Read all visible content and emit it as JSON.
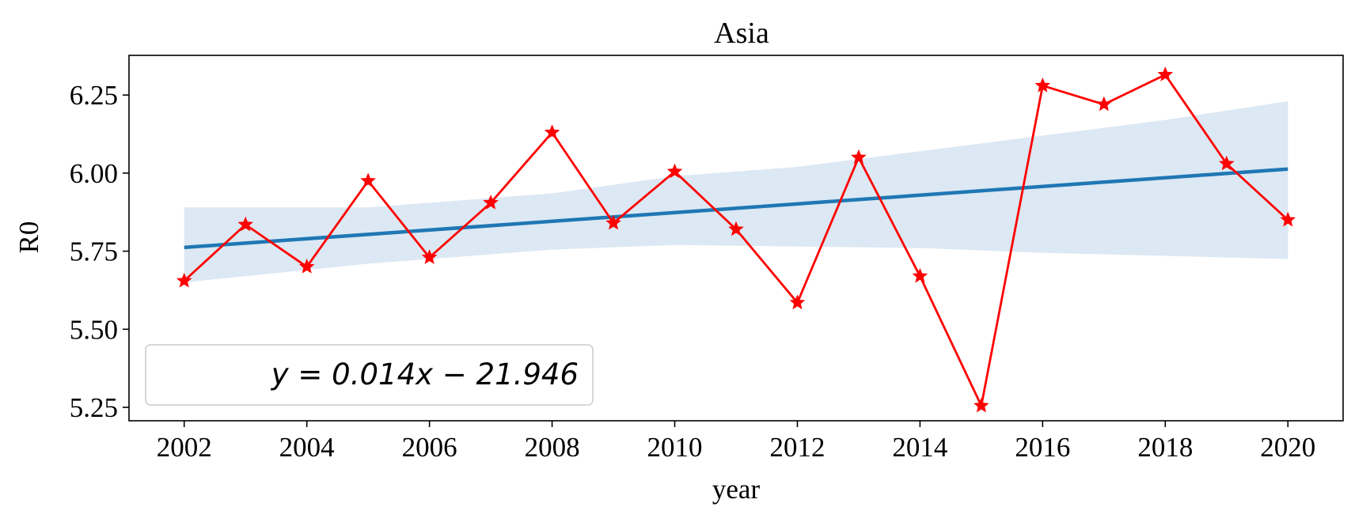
{
  "chart_data": {
    "type": "line",
    "title": "Asia",
    "xlabel": "year",
    "ylabel": "R0",
    "xlim": [
      2001.1,
      2020.9
    ],
    "ylim": [
      5.207,
      6.377
    ],
    "x_ticks": [
      2002,
      2004,
      2006,
      2008,
      2010,
      2012,
      2014,
      2016,
      2018,
      2020
    ],
    "x_tick_labels": [
      "2002",
      "2004",
      "2006",
      "2008",
      "2010",
      "2012",
      "2014",
      "2016",
      "2018",
      "2020"
    ],
    "y_ticks": [
      5.25,
      5.5,
      5.75,
      6.0,
      6.25
    ],
    "y_tick_labels": [
      "5.25",
      "5.50",
      "5.75",
      "6.00",
      "6.25"
    ],
    "grid": false,
    "legend": {
      "position": "lower-left",
      "label": "y = 0.014x − 21.946"
    },
    "series": [
      {
        "marker": "star",
        "color": "#ff0000",
        "x": [
          2002,
          2003,
          2004,
          2005,
          2006,
          2007,
          2008,
          2009,
          2010,
          2011,
          2012,
          2013,
          2014,
          2015,
          2016,
          2017,
          2018,
          2019,
          2020
        ],
        "y": [
          5.655,
          5.835,
          5.7,
          5.975,
          5.73,
          5.905,
          6.13,
          5.84,
          6.005,
          5.82,
          5.585,
          6.05,
          5.67,
          5.255,
          6.28,
          6.22,
          6.315,
          6.03,
          5.85
        ]
      }
    ],
    "regression": {
      "color": "#1f77b4",
      "band_color": "#dce8f3",
      "x": [
        2002,
        2020
      ],
      "y": [
        5.762,
        6.013
      ],
      "band": {
        "x": [
          2002,
          2005,
          2008,
          2010,
          2012,
          2014,
          2016,
          2018,
          2020
        ],
        "upper": [
          5.89,
          5.89,
          5.935,
          5.99,
          6.02,
          6.07,
          6.12,
          6.17,
          6.23
        ],
        "lower": [
          5.65,
          5.71,
          5.755,
          5.77,
          5.765,
          5.76,
          5.745,
          5.735,
          5.725
        ]
      }
    }
  }
}
